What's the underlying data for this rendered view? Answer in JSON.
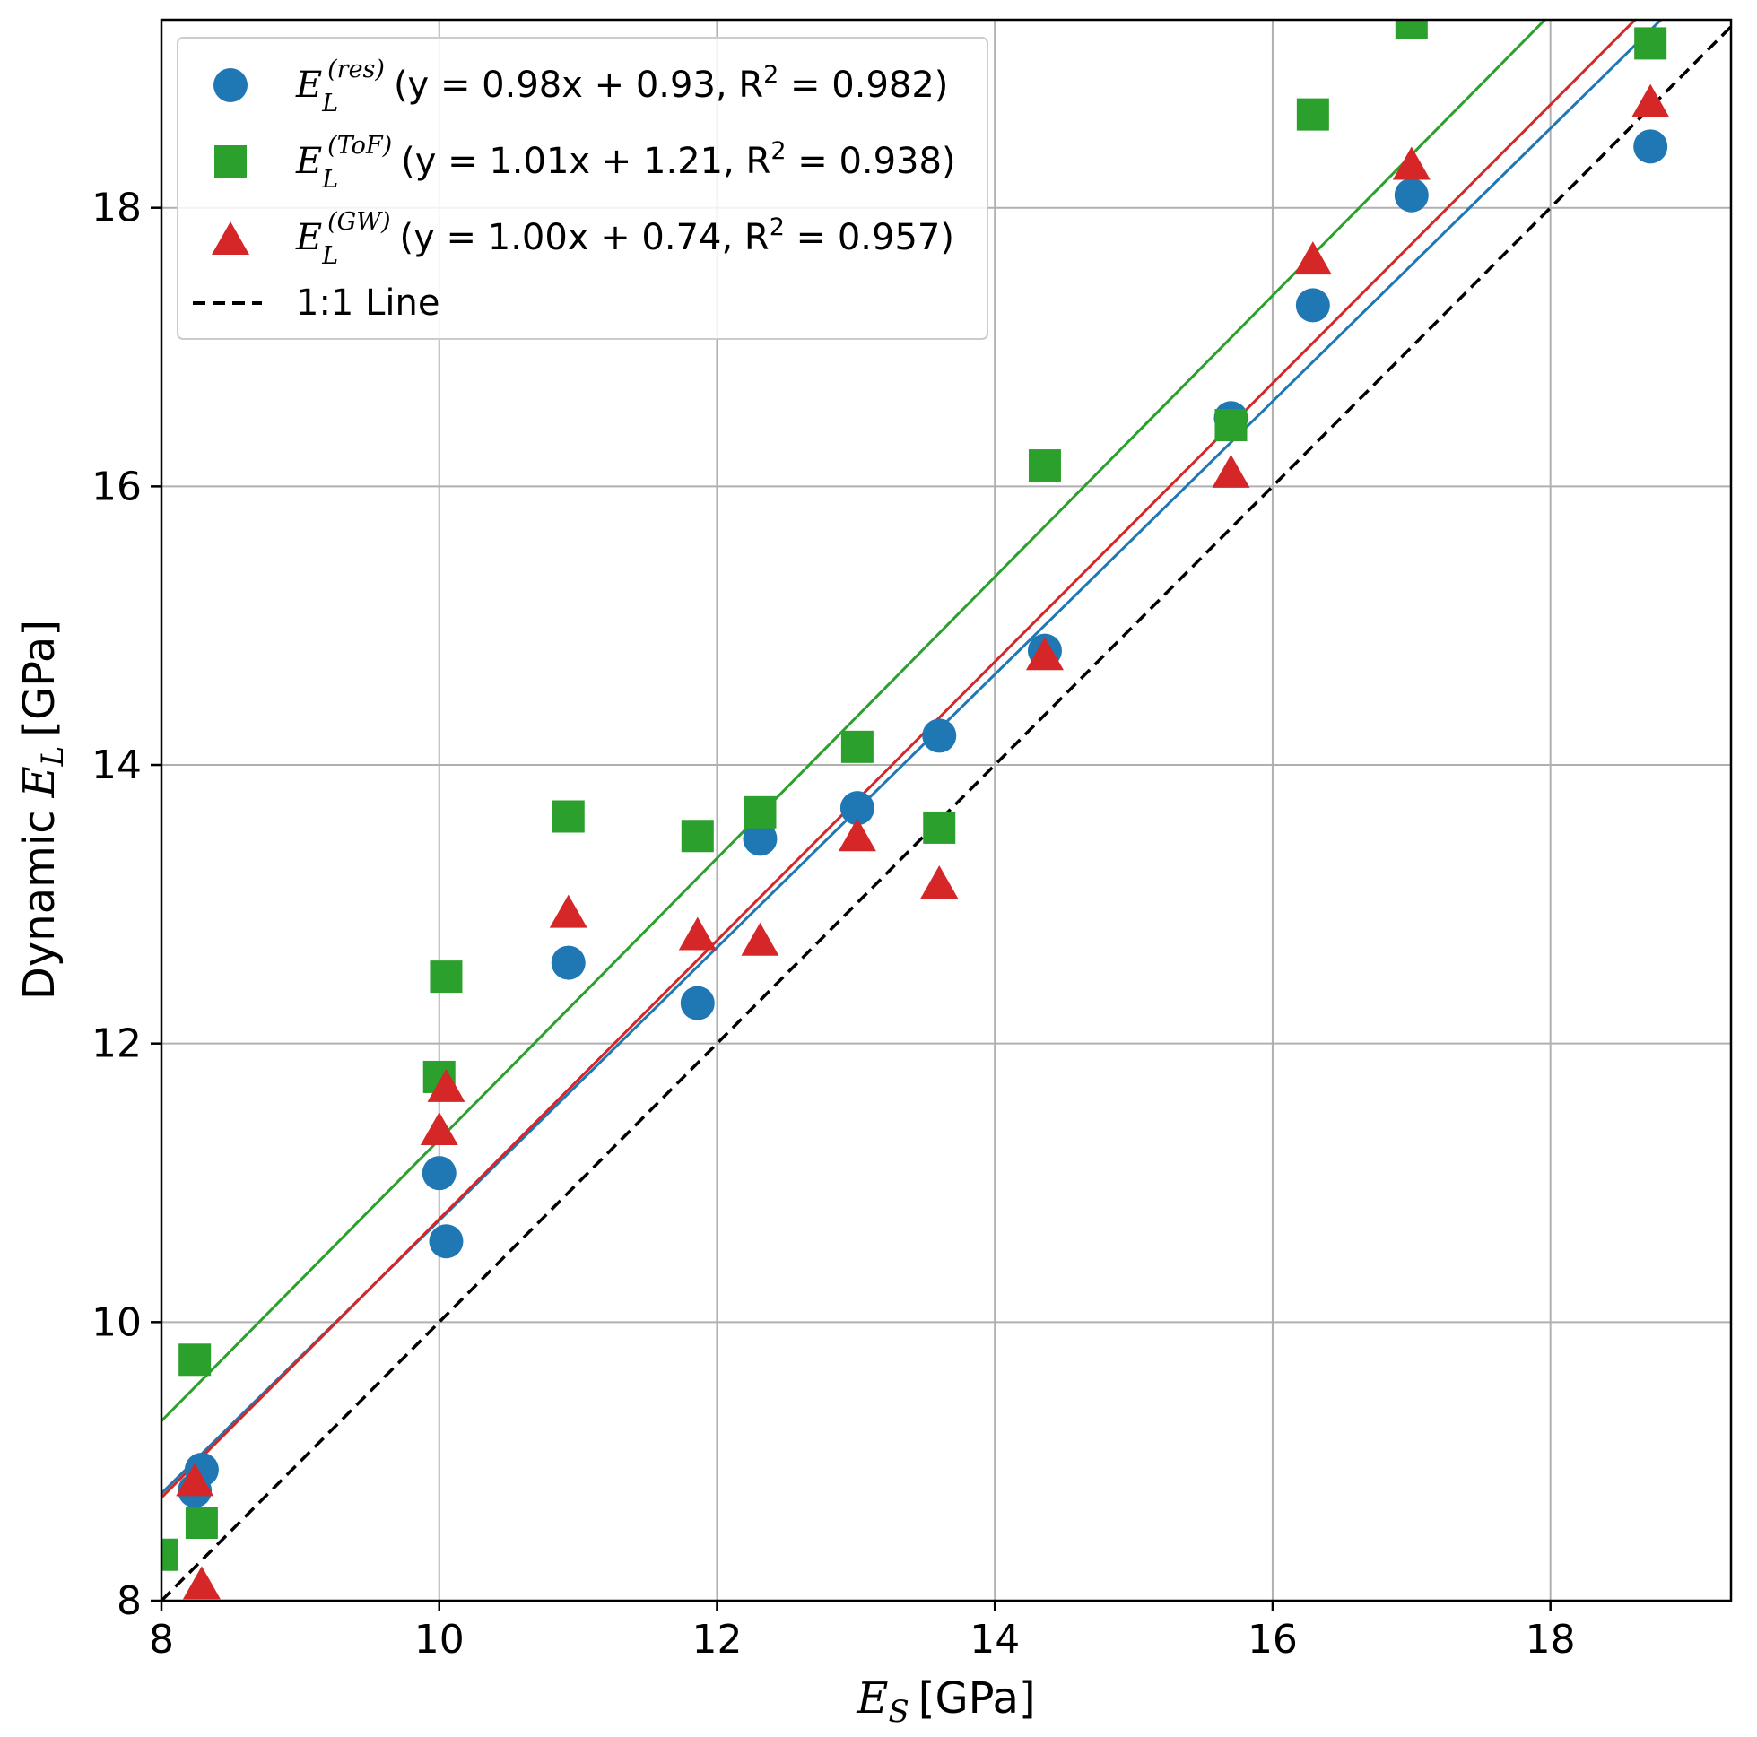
{
  "chart_data": {
    "type": "scatter",
    "xlabel_var": "E",
    "xlabel_sub": "S",
    "xlabel_unit": "[GPa]",
    "ylabel_prefix": "Dynamic",
    "ylabel_var": "E",
    "ylabel_sub": "L",
    "ylabel_unit": "[GPa]",
    "xlim": [
      8,
      19.3
    ],
    "ylim": [
      8,
      19.35
    ],
    "xticks": [
      8,
      10,
      12,
      14,
      16,
      18
    ],
    "yticks": [
      8,
      10,
      12,
      14,
      16,
      18
    ],
    "grid": true,
    "legend_position": "top-left",
    "x": [
      8.0,
      8.24,
      8.29,
      10.0,
      10.05,
      10.93,
      11.86,
      12.31,
      13.01,
      13.6,
      14.36,
      15.7,
      16.29,
      17.0,
      18.72
    ],
    "series": [
      {
        "key": "res",
        "name_var": "E",
        "name_sub": "L",
        "name_sup": "(res)",
        "name_eq": "(y = 0.98x + 0.93, R",
        "name_r2_sup": "2",
        "name_r2_val": " = 0.982)",
        "marker": "circle",
        "color": "#1f77b4",
        "values": [
          null,
          8.79,
          8.94,
          11.07,
          10.58,
          12.58,
          12.29,
          13.47,
          13.69,
          14.21,
          14.82,
          16.49,
          17.3,
          18.09,
          18.44
        ],
        "fit": {
          "slope": 0.98,
          "intercept": 0.93
        }
      },
      {
        "key": "tof",
        "name_var": "E",
        "name_sub": "L",
        "name_sup": "(ToF)",
        "name_eq": "(y = 1.01x + 1.21, R",
        "name_r2_sup": "2",
        "name_r2_val": " = 0.938)",
        "marker": "square",
        "color": "#2ca02c",
        "values": [
          8.33,
          9.73,
          8.56,
          11.76,
          12.48,
          13.63,
          13.49,
          13.66,
          14.13,
          13.55,
          16.15,
          16.44,
          18.67,
          19.33,
          19.18
        ],
        "fit": {
          "slope": 1.01,
          "intercept": 1.21
        }
      },
      {
        "key": "gw",
        "name_var": "E",
        "name_sub": "L",
        "name_sup": "(GW)",
        "name_eq": "(y = 1.00x + 0.74, R",
        "name_r2_sup": "2",
        "name_r2_val": " = 0.957)",
        "marker": "triangle",
        "color": "#d62728",
        "values": [
          null,
          8.86,
          8.12,
          11.38,
          11.69,
          12.94,
          12.78,
          12.74,
          13.49,
          13.15,
          14.79,
          16.1,
          17.63,
          18.31,
          18.76
        ],
        "fit": {
          "slope": 1.0,
          "intercept": 0.74
        }
      }
    ],
    "reference_line": {
      "label": "1:1 Line",
      "color": "#000000",
      "slope": 1,
      "intercept": 0
    }
  }
}
